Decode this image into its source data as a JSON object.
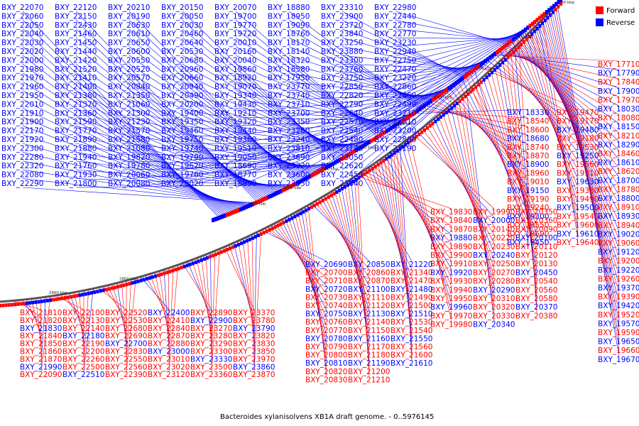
{
  "caption": "Bacteroides xylanisolvens XB1A draft genome. - 0..5976145",
  "legend": [
    {
      "label": "Forward",
      "color": "#ff0000"
    },
    {
      "label": "Reverse",
      "color": "#0000ff"
    }
  ],
  "colors": {
    "forward": "#ff0000",
    "reverse": "#0000ff",
    "backbone": "#555555"
  },
  "ticks_outer": [
    "2100 kbp",
    "2200 kbp",
    "2300 kbp",
    "2400 kbp",
    "2500 kbp",
    "2600 kbp",
    "2700 kbp",
    "2800 kbp",
    "2900 kbp"
  ],
  "ticks_inner": [
    "2800 kbp",
    "2900 kbp"
  ],
  "labels_reverse_top": [
    "BXY_22070",
    "BXY_22060",
    "BXY_22050",
    "BXY_22040",
    "BXY_22030",
    "BXY_22020",
    "BXY_22000",
    "BXY_21980",
    "BXY_21970",
    "BXY_21960",
    "BXY_21950",
    "BXY_22010",
    "BXY_21910",
    "BXY_21900",
    "BXY_22170",
    "BXY_21920",
    "BXY_22300",
    "BXY_22280",
    "BXY_22320",
    "BXY_22080",
    "BXY_22290",
    "BXY_22120",
    "BXY_22150",
    "BXY_22430",
    "BXY_21460",
    "BXY_21450",
    "BXY_21440",
    "BXY_21420",
    "BXY_21520",
    "BXY_21410",
    "BXY_21400",
    "BXY_21380",
    "BXY_21370",
    "BXY_21360",
    "BXY_21590",
    "BXY_21770",
    "BXY_21890",
    "BXY_21880",
    "BXY_21940",
    "BXY_21760",
    "BXY_21930",
    "BXY_21800",
    "BXY_20210",
    "BXY_20190",
    "BXY_20630",
    "BXY_20610",
    "BXY_20650",
    "BXY_20600",
    "BXY_20550",
    "BXY_20520",
    "BXY_20570",
    "BXY_20840",
    "BXY_21350",
    "BXY_21060",
    "BXY_21300",
    "BXY_21230",
    "BXY_21570",
    "BXY_21580",
    "BXY_21080",
    "BXY_19820",
    "BXY_19780",
    "BXY_20060",
    "BXY_20080",
    "BXY_20150",
    "BXY_20050",
    "BXY_20030",
    "BXY_20460",
    "BXY_20640",
    "BXY_20530",
    "BXY_20680",
    "BXY_20960",
    "BXY_20660",
    "BXY_20940",
    "BXY_20490",
    "BXY_20200",
    "BXY_19400",
    "BXY_19350",
    "BXY_19460",
    "BXY_19750",
    "BXY_19740",
    "BXY_19790",
    "BXY_19620",
    "BXY_19760",
    "BXY_20020",
    "BXY_20070",
    "BXY_19700",
    "BXY_19770",
    "BXY_19720",
    "BXY_20010",
    "BXY_20160",
    "BXY_20040",
    "BXY_19860",
    "BXY_18920",
    "BXY_19070",
    "BXY_19340",
    "BXY_19430",
    "BXY_19210",
    "BXY_19320",
    "BXY_19440",
    "BXY_19360",
    "BXY_19510",
    "BXY_19050",
    "BXY_18690",
    "BXY_18770",
    "BXY_18890",
    "BXY_18880",
    "BXY_18950",
    "BXY_19090",
    "BXY_18760",
    "BXY_18170",
    "BXY_18140",
    "BXY_18320",
    "BXY_18580",
    "BXY_17950",
    "BXY_23770",
    "BXY_23740",
    "BXY_23710",
    "BXY_23700",
    "BXY_23350",
    "BXY_23260",
    "BXY_23240",
    "BXY_23810",
    "BXY_23690",
    "BXY_23320",
    "BXY_23600",
    "BXY_23550",
    "BXY_23310",
    "BXY_23900",
    "BXY_23720",
    "BXY_23840",
    "BXY_23250",
    "BXY_23880",
    "BXY_23300",
    "BXY_23760",
    "BXY_23750",
    "BXY_22850",
    "BXY_22820",
    "BXY_22790",
    "BXY_22640",
    "BXY_22570",
    "BXY_22540",
    "BXY_22480",
    "BXY_23140",
    "BXY_23050",
    "BXY_22620",
    "BXY_22450",
    "BXY_23040",
    "BXY_22980",
    "BXY_22440",
    "BXY_22780",
    "BXY_22770",
    "BXY_23230",
    "BXY_22940",
    "BXY_22750",
    "BXY_22470",
    "BXY_23220",
    "BXY_22860",
    "BXY_22460",
    "BXY_22490",
    "BXY_23210",
    "BXY_22810",
    "BXY_23200",
    "BXY_22800",
    "BXY_23190"
  ],
  "labels_right": [
    "BXY_17710",
    "BXY_17790",
    "BXY_17840",
    "BXY_17900",
    "BXY_17970",
    "BXY_18030",
    "BXY_18080",
    "BXY_18150",
    "BXY_18210",
    "BXY_18290",
    "BXY_18460",
    "BXY_18610",
    "BXY_18620",
    "BXY_18700",
    "BXY_18780",
    "BXY_18800",
    "BXY_18910",
    "BXY_18930",
    "BXY_18940",
    "BXY_19020",
    "BXY_19060",
    "BXY_19120",
    "BXY_19200",
    "BXY_19220",
    "BXY_19260",
    "BXY_19370",
    "BXY_19390",
    "BXY_19420",
    "BXY_19520",
    "BXY_19570",
    "BXY_19590",
    "BXY_19650",
    "BXY_19660",
    "BXY_19670"
  ],
  "labels_mid_right": [
    "BXY_18330",
    "BXY_18540",
    "BXY_18600",
    "BXY_18680",
    "BXY_18740",
    "BXY_18870",
    "BXY_18900",
    "BXY_18960",
    "BXY_19010",
    "BXY_19150",
    "BXY_19190",
    "BXY_19240",
    "BXY_19300",
    "BXY_19550",
    "BXY_19690",
    "BXY_19450",
    "BXY_19470",
    "BXY_19170",
    "BXY_19480",
    "BXY_19180",
    "BXY_19530",
    "BXY_19250",
    "BXY_19560",
    "BXY_19310",
    "BXY_19630",
    "BXY_19380",
    "BXY_19490",
    "BXY_19500",
    "BXY_19540",
    "BXY_19600",
    "BXY_19610",
    "BXY_19640"
  ],
  "labels_center_right": [
    "BXY_19830",
    "BXY_19840",
    "BXY_19870",
    "BXY_19880",
    "BXY_19890",
    "BXY_19900",
    "BXY_19910",
    "BXY_19920",
    "BXY_19930",
    "BXY_19940",
    "BXY_19950",
    "BXY_19960",
    "BXY_19970",
    "BXY_19980",
    "BXY_19990",
    "BXY_20000",
    "BXY_20140",
    "BXY_20220",
    "BXY_20230",
    "BXY_20240",
    "BXY_20250",
    "BXY_20270",
    "BXY_20280",
    "BXY_20290",
    "BXY_20310",
    "BXY_20320",
    "BXY_20330",
    "BXY_20340",
    "BXY_20350",
    "BXY_20360",
    "BXY_20090",
    "BXY_20100",
    "BXY_20110",
    "BXY_20120",
    "BXY_20130",
    "BXY_20450",
    "BXY_20540",
    "BXY_20560",
    "BXY_20580",
    "BXY_20370",
    "BXY_20380"
  ],
  "labels_lower_center": [
    "BXY_20690",
    "BXY_20700",
    "BXY_20710",
    "BXY_20720",
    "BXY_20730",
    "BXY_20740",
    "BXY_20750",
    "BXY_20760",
    "BXY_20770",
    "BXY_20780",
    "BXY_20790",
    "BXY_20800",
    "BXY_20810",
    "BXY_20820",
    "BXY_20830",
    "BXY_20850",
    "BXY_20860",
    "BXY_20870",
    "BXY_21100",
    "BXY_21110",
    "BXY_21120",
    "BXY_21130",
    "BXY_21140",
    "BXY_21150",
    "BXY_21160",
    "BXY_21170",
    "BXY_21180",
    "BXY_21190",
    "BXY_21200",
    "BXY_21210",
    "BXY_21220",
    "BXY_21340",
    "BXY_21470",
    "BXY_21480",
    "BXY_21490",
    "BXY_21500",
    "BXY_21510",
    "BXY_21530",
    "BXY_21540",
    "BXY_21550",
    "BXY_21560",
    "BXY_21600",
    "BXY_21610"
  ],
  "labels_lower_left": [
    "BXY_21810",
    "BXY_21820",
    "BXY_21830",
    "BXY_21840",
    "BXY_21850",
    "BXY_21860",
    "BXY_21870",
    "BXY_21990",
    "BXY_22090",
    "BXY_22100",
    "BXY_22130",
    "BXY_22140",
    "BXY_22180",
    "BXY_22190",
    "BXY_22200",
    "BXY_22260",
    "BXY_22500",
    "BXY_22510",
    "BXY_22520",
    "BXY_22530",
    "BXY_22680",
    "BXY_22690",
    "BXY_22700",
    "BXY_22830",
    "BXY_22550",
    "BXY_22560",
    "BXY_22390",
    "BXY_22400",
    "BXY_22410",
    "BXY_22840",
    "BXY_22870",
    "BXY_22880",
    "BXY_23000",
    "BXY_23010",
    "BXY_23020",
    "BXY_23120",
    "BXY_22890",
    "BXY_22900",
    "BXY_23270",
    "BXY_23280",
    "BXY_23290",
    "BXY_23300",
    "BXY_23330",
    "BXY_23500",
    "BXY_23360",
    "BXY_23370",
    "BXY_23780",
    "BXY_23790",
    "BXY_23820",
    "BXY_23830",
    "BXY_23850",
    "BXY_23970",
    "BXY_23860",
    "BXY_23870"
  ]
}
